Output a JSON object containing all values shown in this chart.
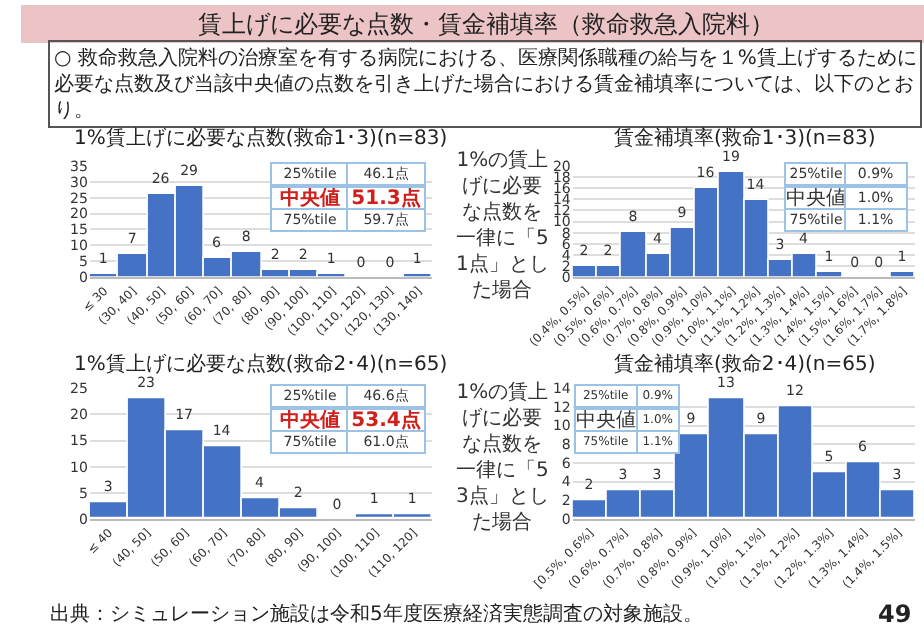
{
  "chart_data": [
    {
      "type": "other",
      "title": "賃上げに必要な点数・賃金補填率（救命救急入院料）",
      "subtitle": "○ 救命救急入院料の治療室を有する病院における、医療関係職種の給与を１%賃上げするために必要な点数及び当該中央値の点数を引き上げた場合における賃金補填率については、以下のとおり。",
      "annotations": [
        "出典：シミュレーション施設は令和5年度医療経済実態調査の対象施設。",
        "49"
      ]
    },
    {
      "type": "bar",
      "title": "1%賃上げに必要な点数(救命1･3)(n=83)",
      "categories": [
        "≤ 30",
        "(30, 40]",
        "(40, 50]",
        "(50, 60]",
        "(60, 70]",
        "(70, 80]",
        "(80, 90]",
        "(90, 100]",
        "(100, 110]",
        "(110, 120]",
        "(120, 130]",
        "(130, 140]"
      ],
      "values": [
        1,
        7,
        26,
        29,
        6,
        8,
        2,
        2,
        1,
        0,
        0,
        1
      ],
      "color": "#4472c4",
      "ylim": [
        0,
        35
      ],
      "yticks": [
        0,
        5,
        10,
        15,
        20,
        25,
        30,
        35
      ],
      "grid": "y",
      "data_labels": true,
      "annotations": [
        "25%tile",
        "46.1点",
        "中央値",
        "51.3点",
        "75%tile",
        "59.7点"
      ]
    },
    {
      "type": "bar",
      "title": "賃金補填率(救命1･3)(n=83)",
      "categories": [
        "(0.4%, 0.5%]",
        "(0.5%, 0.6%]",
        "(0.6%, 0.7%]",
        "(0.7%, 0.8%]",
        "(0.8%, 0.9%]",
        "(0.9%, 1.0%]",
        "(1.0%, 1.1%]",
        "(1.1%, 1.2%]",
        "(1.2%, 1.3%]",
        "(1.3%, 1.4%]",
        "(1.4%, 1.5%]",
        "(1.5%, 1.6%]",
        "(1.6%, 1.7%]",
        "(1.7%, 1.8%]"
      ],
      "values": [
        2,
        2,
        8,
        4,
        9,
        16,
        19,
        14,
        3,
        4,
        1,
        0,
        0,
        1
      ],
      "color": "#4472c4",
      "ylim": [
        0,
        20
      ],
      "yticks": [
        0,
        2,
        4,
        6,
        8,
        10,
        12,
        14,
        16,
        18,
        20
      ],
      "grid": "y",
      "data_labels": true,
      "annotations": [
        "25%tile",
        "0.9%",
        "中央値",
        "1.0%",
        "75%tile",
        "1.1%",
        "1%の賃上げに必要な点数を一律に「51点」とした場合"
      ]
    },
    {
      "type": "bar",
      "title": "1%賃上げに必要な点数(救命2･4)(n=65)",
      "categories": [
        "≤ 40",
        "(40, 50]",
        "(50, 60]",
        "(60, 70]",
        "(70, 80]",
        "(80, 90]",
        "(90, 100]",
        "(100, 110]",
        "(110, 120]"
      ],
      "values": [
        3,
        23,
        17,
        14,
        4,
        2,
        0,
        1,
        1
      ],
      "color": "#4472c4",
      "ylim": [
        0,
        25
      ],
      "yticks": [
        0,
        5,
        10,
        15,
        20,
        25
      ],
      "grid": "y",
      "data_labels": true,
      "annotations": [
        "25%tile",
        "46.6点",
        "中央値",
        "53.4点",
        "75%tile",
        "61.0点"
      ]
    },
    {
      "type": "bar",
      "title": "賃金補填率(救命2･4)(n=65)",
      "categories": [
        "[0.5%, 0.6%]",
        "(0.6%, 0.7%]",
        "(0.7%, 0.8%]",
        "(0.8%, 0.9%]",
        "(0.9%, 1.0%]",
        "(1.0%, 1.1%]",
        "(1.1%, 1.2%]",
        "(1.2%, 1.3%]",
        "(1.3%, 1.4%]",
        "(1.4%, 1.5%]"
      ],
      "values": [
        2,
        3,
        3,
        9,
        13,
        9,
        12,
        5,
        6,
        3
      ],
      "color": "#4472c4",
      "ylim": [
        0,
        14
      ],
      "yticks": [
        0,
        2,
        4,
        6,
        8,
        10,
        12,
        14
      ],
      "grid": "y",
      "data_labels": true,
      "annotations": [
        "25%tile",
        "0.9%",
        "中央値",
        "1.0%",
        "75%tile",
        "1.1%",
        "1%の賃上げに必要な点数を一律に「53点」とした場合"
      ]
    }
  ]
}
